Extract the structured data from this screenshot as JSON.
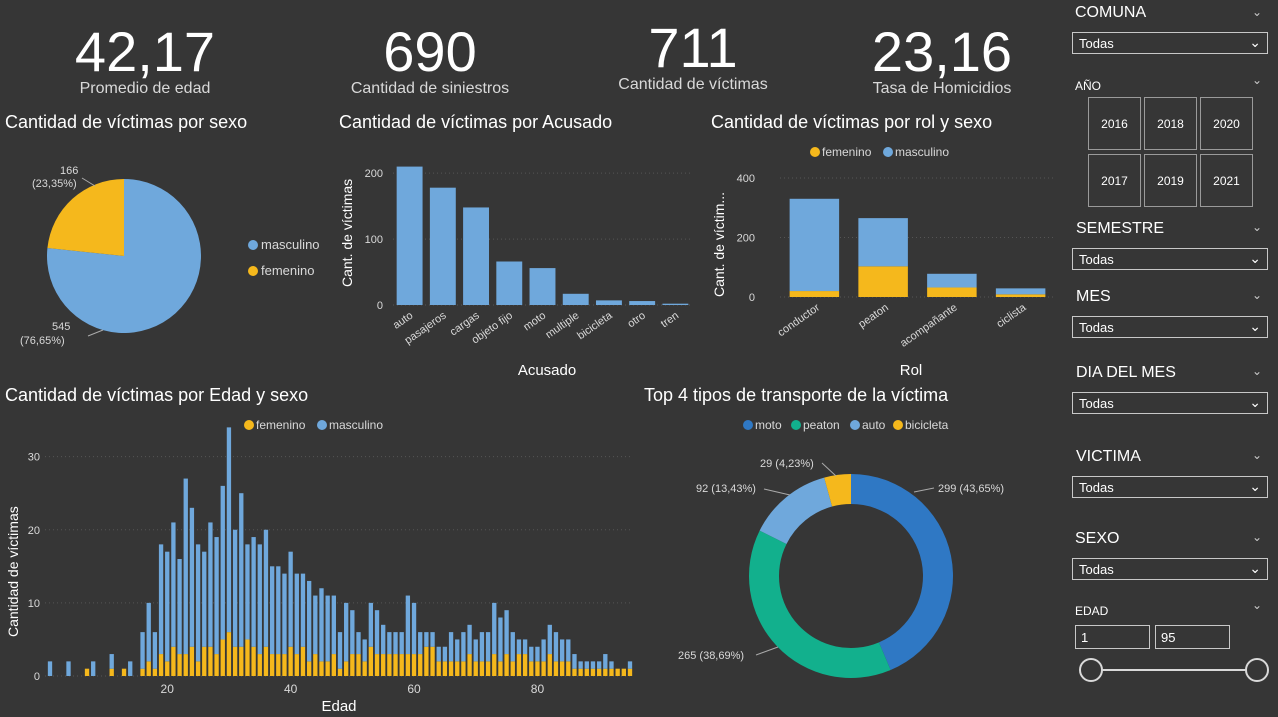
{
  "kpis": [
    {
      "value": "42,17",
      "label": "Promedio de edad"
    },
    {
      "value": "690",
      "label": "Cantidad de siniestros"
    },
    {
      "value": "711",
      "label": "Cantidad de víctimas"
    },
    {
      "value": "23,16",
      "label": "Tasa de Homicidios"
    }
  ],
  "slicers": {
    "comuna": {
      "title": "COMUNA",
      "value": "Todas"
    },
    "anio": {
      "title": "AÑO",
      "options": [
        "2016",
        "2018",
        "2020",
        "2017",
        "2019",
        "2021"
      ]
    },
    "semestre": {
      "title": "SEMESTRE",
      "value": "Todas"
    },
    "mes": {
      "title": "MES",
      "value": "Todas"
    },
    "dia": {
      "title": "DIA DEL MES",
      "value": "Todas"
    },
    "victima": {
      "title": "VICTIMA",
      "value": "Todas"
    },
    "sexo": {
      "title": "SEXO",
      "value": "Todas"
    },
    "edad": {
      "title": "EDAD",
      "min": "1",
      "max": "95"
    }
  },
  "colors": {
    "masculino": "#6fa8dc",
    "femenino": "#f5b81c",
    "moto": "#2f78c4",
    "peaton": "#12b08d",
    "auto": "#6fa8dc",
    "bicicleta": "#f5b81c"
  },
  "chart_data": [
    {
      "type": "pie",
      "title": "Cantidad de víctimas por sexo",
      "slices": [
        {
          "name": "masculino",
          "value": 545,
          "label": "545",
          "pct": "(76,65%)"
        },
        {
          "name": "femenino",
          "value": 166,
          "label": "166",
          "pct": "(23,35%)"
        }
      ],
      "legend": [
        "masculino",
        "femenino"
      ],
      "legend_position": "right"
    },
    {
      "type": "bar",
      "title": "Cantidad de víctimas por Acusado",
      "xlabel": "Acusado",
      "ylabel": "Cant. de víctimas",
      "ylim": [
        0,
        220
      ],
      "yticks": [
        "0",
        "100",
        "200"
      ],
      "categories": [
        "auto",
        "pasajeros",
        "cargas",
        "objeto fijo",
        "moto",
        "multiple",
        "bicicleta",
        "otro",
        "tren"
      ],
      "values": [
        210,
        178,
        148,
        66,
        56,
        17,
        7,
        6,
        2
      ]
    },
    {
      "type": "bar",
      "title": "Cantidad de víctimas por rol y sexo",
      "xlabel": "Rol",
      "ylabel": "Cant. de víctim...",
      "ylim": [
        0,
        420
      ],
      "yticks": [
        "0",
        "200",
        "400"
      ],
      "legend": [
        "femenino",
        "masculino"
      ],
      "categories": [
        "conductor",
        "peaton",
        "acompañante",
        "ciclista"
      ],
      "series": [
        {
          "name": "femenino",
          "values": [
            20,
            103,
            32,
            9
          ]
        },
        {
          "name": "masculino",
          "values": [
            310,
            162,
            46,
            20
          ]
        }
      ]
    },
    {
      "type": "bar",
      "title": "Cantidad de víctimas por Edad y sexo",
      "xlabel": "Edad",
      "ylabel": "Cantidad de víctimas",
      "ylim": [
        0,
        32
      ],
      "yticks": [
        "0",
        "10",
        "20",
        "30"
      ],
      "xticks": [
        "20",
        "40",
        "60",
        "80"
      ],
      "xrange": [
        1,
        95
      ],
      "legend": [
        "femenino",
        "masculino"
      ],
      "ages": [
        1,
        2,
        3,
        4,
        5,
        6,
        7,
        8,
        9,
        10,
        11,
        12,
        13,
        14,
        15,
        16,
        17,
        18,
        19,
        20,
        21,
        22,
        23,
        24,
        25,
        26,
        27,
        28,
        29,
        30,
        31,
        32,
        33,
        34,
        35,
        36,
        37,
        38,
        39,
        40,
        41,
        42,
        43,
        44,
        45,
        46,
        47,
        48,
        49,
        50,
        51,
        52,
        53,
        54,
        55,
        56,
        57,
        58,
        59,
        60,
        61,
        62,
        63,
        64,
        65,
        66,
        67,
        68,
        69,
        70,
        71,
        72,
        73,
        74,
        75,
        76,
        77,
        78,
        79,
        80,
        81,
        82,
        83,
        84,
        85,
        86,
        87,
        88,
        89,
        90,
        91,
        92,
        93,
        94,
        95
      ],
      "series": [
        {
          "name": "femenino",
          "values": [
            0,
            0,
            0,
            0,
            0,
            0,
            1,
            0,
            0,
            0,
            1,
            0,
            1,
            0,
            0,
            1,
            2,
            1,
            3,
            2,
            4,
            3,
            3,
            4,
            2,
            4,
            4,
            3,
            5,
            6,
            4,
            4,
            5,
            4,
            3,
            4,
            3,
            3,
            3,
            4,
            3,
            4,
            2,
            3,
            2,
            2,
            3,
            1,
            2,
            3,
            3,
            2,
            4,
            3,
            3,
            3,
            3,
            3,
            3,
            3,
            3,
            4,
            4,
            2,
            2,
            2,
            2,
            2,
            3,
            2,
            2,
            2,
            3,
            2,
            3,
            2,
            3,
            3,
            2,
            2,
            2,
            3,
            2,
            2,
            2,
            1,
            1,
            1,
            1,
            1,
            1,
            1,
            1,
            1,
            1
          ]
        },
        {
          "name": "femenino_off",
          "values": []
        },
        {
          "name": "masculino",
          "values": [
            2,
            0,
            0,
            2,
            0,
            0,
            0,
            2,
            0,
            0,
            2,
            0,
            0,
            2,
            0,
            5,
            8,
            5,
            15,
            15,
            17,
            13,
            24,
            19,
            16,
            13,
            17,
            16,
            21,
            28,
            16,
            21,
            13,
            15,
            15,
            16,
            12,
            12,
            11,
            13,
            11,
            10,
            11,
            8,
            10,
            9,
            8,
            5,
            8,
            6,
            3,
            3,
            6,
            6,
            4,
            3,
            3,
            3,
            8,
            7,
            3,
            2,
            2,
            2,
            2,
            4,
            3,
            4,
            4,
            3,
            4,
            4,
            7,
            6,
            6,
            4,
            2,
            2,
            2,
            2,
            3,
            4,
            4,
            3,
            3,
            2,
            1,
            1,
            1,
            1,
            2,
            1,
            0,
            0,
            1
          ]
        }
      ]
    },
    {
      "type": "pie",
      "subtype": "donut",
      "title": "Top 4 tipos de transporte de la víctima",
      "legend": [
        "moto",
        "peaton",
        "auto",
        "bicicleta"
      ],
      "legend_position": "top",
      "slices": [
        {
          "name": "moto",
          "value": 299,
          "label": "299 (43,65%)"
        },
        {
          "name": "peaton",
          "value": 265,
          "label": "265 (38,69%)"
        },
        {
          "name": "auto",
          "value": 92,
          "label": "92 (13,43%)"
        },
        {
          "name": "bicicleta",
          "value": 29,
          "label": "29 (4,23%)"
        }
      ]
    }
  ]
}
